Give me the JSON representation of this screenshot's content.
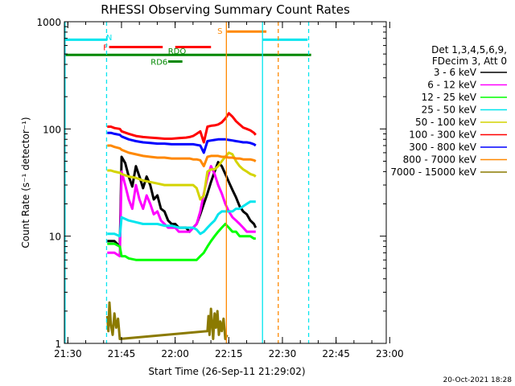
{
  "chart_data": {
    "type": "line",
    "title": "RHESSI Observing Summary Count Rates",
    "xlabel": "Start Time (26-Sep-11 21:29:02)",
    "ylabel": "Count Rate (s⁻¹ detector⁻¹)",
    "x_ticks": [
      "21:30",
      "21:45",
      "22:00",
      "22:15",
      "22:30",
      "22:45",
      "23:00"
    ],
    "y_ticks": [
      "1",
      "10",
      "100",
      "1000"
    ],
    "y_scale": "log",
    "ylim": [
      1,
      1000
    ],
    "xlim_minutes": [
      0,
      90
    ],
    "timestamp": "20-Oct-2021 18:28",
    "legend_header": [
      "Det 1,3,4,5,6,9,",
      "FDecim 3, Att 0"
    ],
    "colors": {
      "cyan": "#00e5ee",
      "black": "#000000",
      "magenta": "#ff00ff",
      "green": "#00ff00",
      "yellow": "#d4d400",
      "red": "#ff0000",
      "blue": "#0000ff",
      "orange": "#ff8800",
      "olive": "#8b7a00",
      "darkgreen": "#008800",
      "axis": "#000000"
    },
    "series": [
      {
        "name": "3 - 6 keV",
        "color": "#000000",
        "x": [
          12,
          13,
          14,
          15.5,
          16,
          17,
          18,
          19,
          20,
          21,
          22,
          23,
          24,
          25,
          26,
          27,
          28,
          29,
          30,
          31,
          32,
          33,
          34,
          35,
          36,
          37,
          38,
          39,
          40,
          41,
          42,
          43,
          44,
          45,
          46,
          47,
          48,
          49,
          50,
          51,
          52,
          53,
          53.5
        ],
        "y": [
          9,
          9,
          9,
          8,
          55,
          48,
          36,
          29,
          45,
          36,
          28,
          36,
          30,
          22,
          24,
          18,
          17,
          14,
          13,
          13,
          12,
          12,
          12,
          11,
          12,
          13,
          16,
          20,
          25,
          32,
          40,
          49,
          45,
          38,
          32,
          27,
          23,
          19,
          17,
          16,
          14,
          13,
          12
        ]
      },
      {
        "name": "6 - 12 keV",
        "color": "#ff00ff",
        "x": [
          12,
          13,
          14,
          15.5,
          16,
          17,
          18,
          19,
          20,
          21,
          22,
          23,
          24,
          25,
          26,
          27,
          28,
          29,
          30,
          31,
          32,
          33,
          34,
          35,
          36,
          37,
          38,
          39,
          40,
          41,
          42,
          43,
          44,
          45,
          46,
          47,
          48,
          49,
          50,
          51,
          52,
          53,
          53.5
        ],
        "y": [
          7,
          7,
          7,
          6.5,
          40,
          30,
          22,
          18,
          30,
          22,
          18,
          24,
          20,
          16,
          17,
          14,
          13,
          12,
          12,
          12,
          11,
          11,
          11,
          11,
          12,
          13,
          17,
          25,
          35,
          45,
          38,
          30,
          25,
          20,
          17,
          15,
          14,
          13,
          12,
          11,
          11,
          11,
          11
        ]
      },
      {
        "name": "12 - 25 keV",
        "color": "#00ff00",
        "x": [
          12,
          13,
          14,
          15.5,
          16,
          17,
          18,
          20,
          22,
          24,
          26,
          28,
          30,
          32,
          34,
          35,
          36,
          37,
          38,
          39,
          40,
          41,
          42,
          43,
          44,
          45,
          46,
          47,
          48,
          49,
          50,
          51,
          52,
          53,
          53.5
        ],
        "y": [
          8.5,
          8.5,
          8.5,
          8,
          6.5,
          6.5,
          6.2,
          6,
          6,
          6,
          6,
          6,
          6,
          6,
          6,
          6,
          6,
          6,
          6.5,
          7,
          8,
          9,
          10,
          11,
          12,
          13,
          12,
          11,
          11,
          10,
          10,
          10,
          10,
          9.5,
          9.5
        ]
      },
      {
        "name": "25 - 50 keV",
        "color": "#00e5ee",
        "x": [
          12,
          13,
          14,
          15.5,
          16,
          18,
          20,
          22,
          24,
          26,
          28,
          30,
          32,
          34,
          35,
          36,
          37,
          38,
          39,
          40,
          41,
          42,
          43,
          44,
          45,
          46,
          47,
          48,
          49,
          50,
          51,
          52,
          53,
          53.5
        ],
        "y": [
          10.5,
          10.5,
          10.5,
          10,
          15,
          14,
          13.5,
          13,
          13,
          13,
          12.5,
          12.5,
          12,
          12,
          12,
          12,
          11.5,
          10.5,
          11,
          12,
          13,
          14,
          16,
          17,
          17,
          17,
          17,
          18,
          18,
          19,
          20,
          21,
          21,
          21
        ]
      },
      {
        "name": "50 - 100 keV",
        "color": "#d4d400",
        "x": [
          12,
          13,
          14,
          15.5,
          16,
          18,
          20,
          22,
          24,
          26,
          28,
          30,
          32,
          34,
          35,
          36,
          37,
          38,
          39,
          40,
          41,
          42,
          43,
          44,
          45,
          46,
          47,
          48,
          49,
          50,
          51,
          52,
          53,
          53.5
        ],
        "y": [
          41,
          41,
          40,
          39,
          38,
          36,
          35,
          33,
          32,
          31,
          30,
          30,
          30,
          30,
          30,
          30,
          28,
          22,
          24,
          40,
          42,
          42,
          45,
          50,
          55,
          60,
          58,
          50,
          45,
          42,
          40,
          38,
          37,
          36
        ]
      },
      {
        "name": "100 - 300 keV",
        "color": "#ff0000",
        "x": [
          12,
          13,
          14,
          15.5,
          16,
          18,
          20,
          22,
          24,
          26,
          28,
          30,
          32,
          34,
          35,
          36,
          37,
          38,
          39,
          40,
          41,
          42,
          43,
          44,
          45,
          46,
          47,
          48,
          49,
          50,
          51,
          52,
          53,
          53.5
        ],
        "y": [
          105,
          105,
          102,
          100,
          95,
          90,
          86,
          84,
          83,
          82,
          81,
          81,
          82,
          83,
          84,
          86,
          90,
          95,
          75,
          105,
          107,
          108,
          110,
          115,
          125,
          140,
          130,
          118,
          110,
          103,
          100,
          97,
          92,
          88
        ]
      },
      {
        "name": "300 - 800 keV",
        "color": "#0000ff",
        "x": [
          12,
          13,
          14,
          15.5,
          16,
          18,
          20,
          22,
          24,
          26,
          28,
          30,
          32,
          34,
          35,
          36,
          37,
          38,
          39,
          40,
          41,
          42,
          43,
          44,
          45,
          46,
          47,
          48,
          49,
          50,
          51,
          52,
          53,
          53.5
        ],
        "y": [
          92,
          92,
          90,
          88,
          85,
          80,
          77,
          75,
          74,
          73,
          73,
          72,
          72,
          72,
          72,
          72,
          71,
          70,
          60,
          77,
          78,
          79,
          80,
          80,
          80,
          79,
          78,
          77,
          76,
          75,
          75,
          74,
          72,
          70
        ]
      },
      {
        "name": "800 - 7000 keV",
        "color": "#ff8800",
        "x": [
          12,
          13,
          14,
          15.5,
          16,
          18,
          20,
          22,
          24,
          26,
          28,
          30,
          32,
          34,
          35,
          36,
          37,
          38,
          39,
          40,
          41,
          42,
          43,
          44,
          45,
          46,
          47,
          48,
          49,
          50,
          51,
          52,
          53,
          53.5
        ],
        "y": [
          70,
          70,
          68,
          66,
          64,
          60,
          58,
          56,
          55,
          54,
          54,
          53,
          53,
          53,
          53,
          52,
          52,
          51,
          45,
          55,
          56,
          56,
          56,
          55,
          55,
          54,
          54,
          53,
          53,
          52,
          52,
          52,
          51,
          50
        ]
      },
      {
        "name": "7000 - 15000 keV",
        "color": "#8b7a00",
        "x": [
          12,
          12.3,
          12.6,
          13,
          13.5,
          14,
          14.5,
          15,
          15.5,
          40,
          40.3,
          40.6,
          41,
          41.3,
          41.6,
          42,
          42.4,
          42.8,
          43.2,
          43.6,
          44,
          44.5,
          45,
          45.5
        ],
        "y": [
          1.8,
          1.3,
          2.4,
          1.5,
          1.2,
          1.9,
          1.4,
          1.7,
          1.1,
          1.3,
          1.8,
          1.2,
          2.1,
          1.5,
          1.1,
          1.9,
          1.4,
          2.0,
          1.2,
          1.6,
          1.3,
          1.7,
          1.1,
          1.2
        ]
      }
    ],
    "flags": [
      {
        "label": "N",
        "color": "#00e5ee",
        "segments": [
          [
            0,
            12
          ],
          [
            55.5,
            68
          ]
        ],
        "level": 680,
        "label_x": 12.5,
        "label_level": 720
      },
      {
        "label": "F",
        "color": "#ff0000",
        "segments": [
          [
            12.5,
            27.5
          ],
          [
            31,
            41
          ]
        ],
        "level": 580,
        "label_x": 11.5,
        "label_level": 580
      },
      {
        "label": "RDO",
        "color": "#008800",
        "segments": [
          [
            0,
            69
          ]
        ],
        "level": 490,
        "label_x": 31.5,
        "label_level": 535
      },
      {
        "label": "RD6",
        "color": "#008800",
        "segments": [
          [
            29,
            33
          ]
        ],
        "level": 425,
        "label_x": 26.5,
        "label_level": 425
      },
      {
        "label": "S",
        "color": "#ff8800",
        "segments": [
          [
            45.5,
            56.5
          ]
        ],
        "level": 810,
        "label_x": 43.5,
        "label_level": 830
      }
    ],
    "vlines": [
      {
        "x": 0.2,
        "color": "#00e5ee",
        "style": "solid"
      },
      {
        "x": 11.8,
        "color": "#00e5ee",
        "style": "dashed"
      },
      {
        "x": 45.3,
        "color": "#ff8800",
        "style": "solid"
      },
      {
        "x": 55.4,
        "color": "#00e5ee",
        "style": "solid"
      },
      {
        "x": 59.8,
        "color": "#ff8800",
        "style": "dashed"
      },
      {
        "x": 68.3,
        "color": "#00e5ee",
        "style": "dashed"
      }
    ]
  }
}
